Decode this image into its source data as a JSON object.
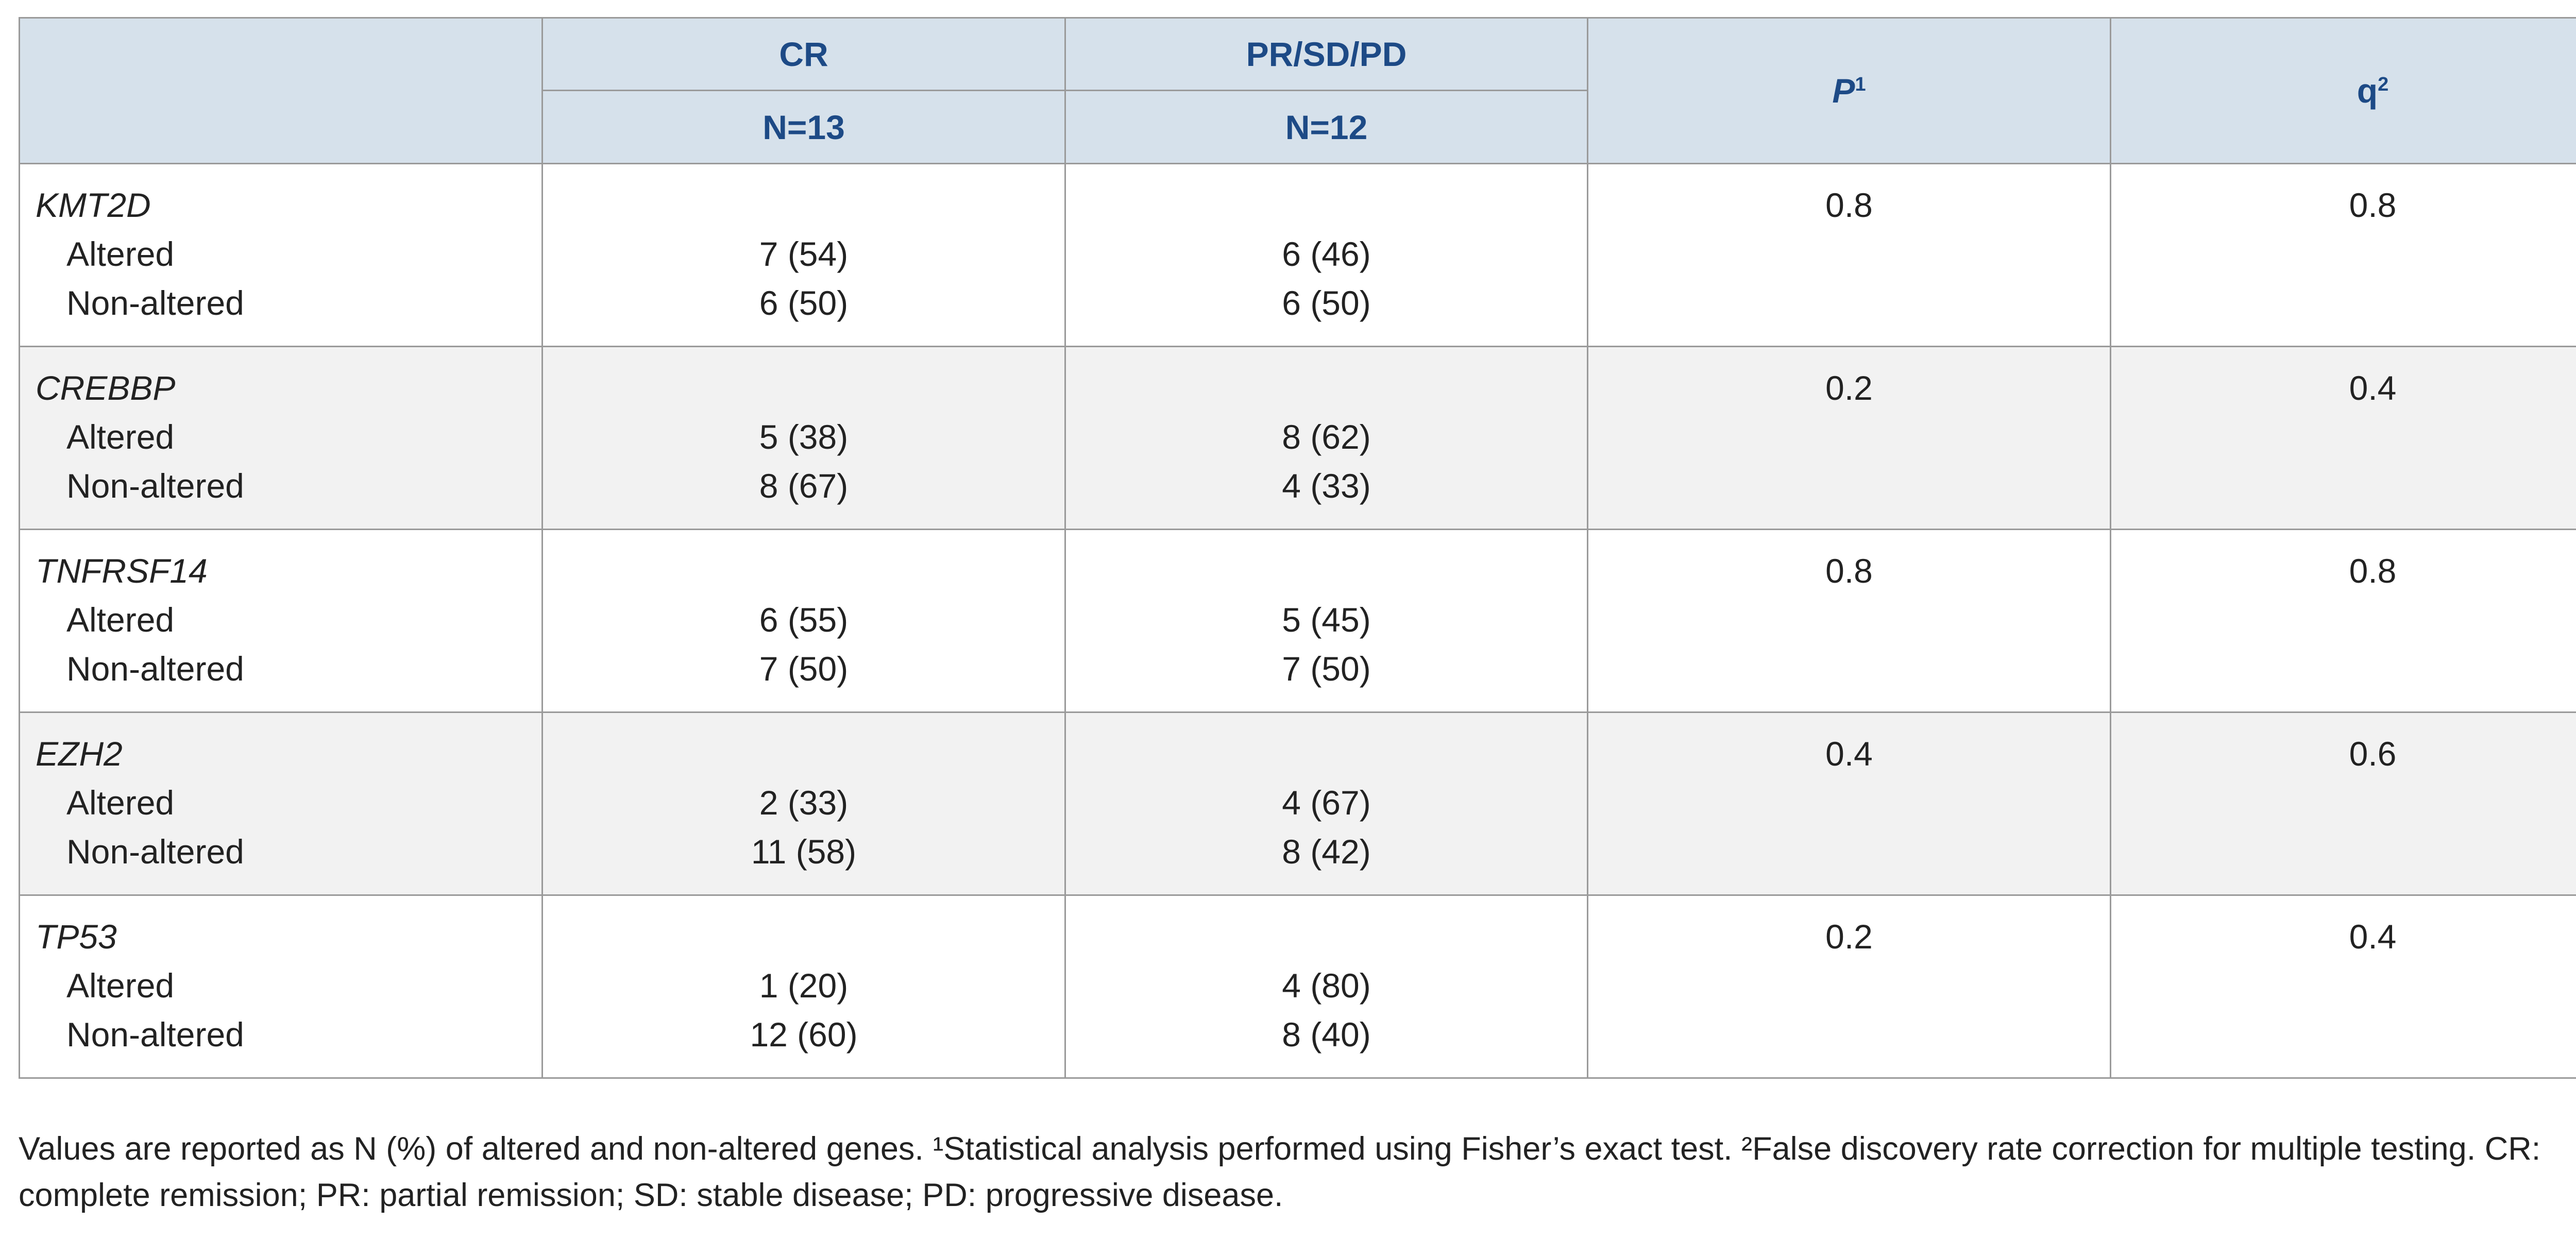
{
  "table": {
    "header": {
      "cr": "CR",
      "cr_n": "N=13",
      "pr": "PR/SD/PD",
      "pr_n": "N=12",
      "p": "P",
      "p_sup": "1",
      "q": "q",
      "q_sup": "2"
    },
    "rows": [
      {
        "gene": "KMT2D",
        "labels": [
          "Altered",
          "Non-altered"
        ],
        "cr": [
          "7 (54)",
          "6 (50)"
        ],
        "pr": [
          "6 (46)",
          "6 (50)"
        ],
        "p": "0.8",
        "q": "0.8"
      },
      {
        "gene": "CREBBP",
        "labels": [
          "Altered",
          "Non-altered"
        ],
        "cr": [
          "5 (38)",
          "8 (67)"
        ],
        "pr": [
          "8 (62)",
          "4 (33)"
        ],
        "p": "0.2",
        "q": "0.4"
      },
      {
        "gene": "TNFRSF14",
        "labels": [
          "Altered",
          "Non-altered"
        ],
        "cr": [
          "6 (55)",
          "7 (50)"
        ],
        "pr": [
          "5 (45)",
          "7 (50)"
        ],
        "p": "0.8",
        "q": "0.8"
      },
      {
        "gene": "EZH2",
        "labels": [
          "Altered",
          "Non-altered"
        ],
        "cr": [
          "2 (33)",
          "11 (58)"
        ],
        "pr": [
          "4 (67)",
          "8 (42)"
        ],
        "p": "0.4",
        "q": "0.6"
      },
      {
        "gene": "TP53",
        "labels": [
          "Altered",
          "Non-altered"
        ],
        "cr": [
          "1 (20)",
          "12 (60)"
        ],
        "pr": [
          "4 (80)",
          "8 (40)"
        ],
        "p": "0.2",
        "q": "0.4"
      }
    ]
  },
  "footnote": "Values are reported as N (%) of altered and non-altered genes. ¹Statistical analysis performed using Fisher’s exact test. ²False discovery rate correction for multiple testing. CR: complete remission; PR: partial remission; SD: stable disease; PD: progressive disease."
}
